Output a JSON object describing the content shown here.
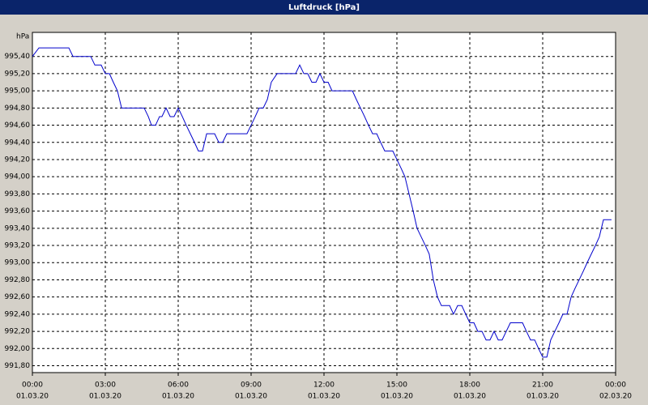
{
  "chart_data": {
    "type": "line",
    "title": "Luftdruck [hPa]",
    "y_label": "hPa",
    "xlim": [
      0,
      24
    ],
    "xticks": [
      {
        "value": 0,
        "label": "00:00",
        "sublabel": "01.03.20"
      },
      {
        "value": 3,
        "label": "03:00",
        "sublabel": "01.03.20"
      },
      {
        "value": 6,
        "label": "06:00",
        "sublabel": "01.03.20"
      },
      {
        "value": 9,
        "label": "09:00",
        "sublabel": "01.03.20"
      },
      {
        "value": 12,
        "label": "12:00",
        "sublabel": "01.03.20"
      },
      {
        "value": 15,
        "label": "15:00",
        "sublabel": "01.03.20"
      },
      {
        "value": 18,
        "label": "18:00",
        "sublabel": "01.03.20"
      },
      {
        "value": 21,
        "label": "21:00",
        "sublabel": "01.03.20"
      },
      {
        "value": 24,
        "label": "00:00",
        "sublabel": "02.03.20"
      }
    ],
    "ylim": [
      991.72,
      995.68
    ],
    "yticks": [
      {
        "value": 991.8,
        "label": "991,80"
      },
      {
        "value": 992.0,
        "label": "992,00"
      },
      {
        "value": 992.2,
        "label": "992,20"
      },
      {
        "value": 992.4,
        "label": "992,40"
      },
      {
        "value": 992.6,
        "label": "992,60"
      },
      {
        "value": 992.8,
        "label": "992,80"
      },
      {
        "value": 993.0,
        "label": "993,00"
      },
      {
        "value": 993.2,
        "label": "993,20"
      },
      {
        "value": 993.4,
        "label": "993,40"
      },
      {
        "value": 993.6,
        "label": "993,60"
      },
      {
        "value": 993.8,
        "label": "993,80"
      },
      {
        "value": 994.0,
        "label": "994,00"
      },
      {
        "value": 994.2,
        "label": "994,20"
      },
      {
        "value": 994.4,
        "label": "994,40"
      },
      {
        "value": 994.6,
        "label": "994,60"
      },
      {
        "value": 994.8,
        "label": "994,80"
      },
      {
        "value": 995.0,
        "label": "995,00"
      },
      {
        "value": 995.2,
        "label": "995,20"
      },
      {
        "value": 995.4,
        "label": "995,40"
      }
    ],
    "grid": true,
    "x": [
      0,
      0.27,
      1.5,
      1.67,
      2.4,
      2.57,
      2.83,
      3,
      3.17,
      3.33,
      3.5,
      3.67,
      4.6,
      4.77,
      4.9,
      5.07,
      5.23,
      5.33,
      5.5,
      5.67,
      5.83,
      6,
      6.17,
      6.33,
      6.5,
      6.67,
      6.83,
      7,
      7.17,
      7.5,
      7.67,
      7.83,
      8,
      8.83,
      9,
      9.17,
      9.33,
      9.5,
      9.67,
      9.83,
      10.07,
      10.83,
      11,
      11.17,
      11.33,
      11.5,
      11.67,
      11.83,
      12,
      12.17,
      12.33,
      13.17,
      13.33,
      13.5,
      13.67,
      13.83,
      14,
      14.17,
      14.33,
      14.5,
      14.83,
      15,
      15.17,
      15.33,
      15.5,
      15.67,
      15.83,
      16,
      16.17,
      16.33,
      16.5,
      16.67,
      16.83,
      17.17,
      17.33,
      17.5,
      17.67,
      17.83,
      18,
      18.17,
      18.33,
      18.5,
      18.67,
      18.83,
      19,
      19.17,
      19.33,
      19.5,
      19.67,
      20.17,
      20.33,
      20.5,
      20.67,
      20.83,
      21,
      21.17,
      21.33,
      21.5,
      21.67,
      21.83,
      22,
      22.17,
      22.33,
      22.5,
      22.67,
      22.83,
      23,
      23.17,
      23.33,
      23.5,
      23.83
    ],
    "series": [
      {
        "name": "Luftdruck",
        "color": "#0000cc",
        "values": [
          995.4,
          995.5,
          995.5,
          995.4,
          995.4,
          995.3,
          995.3,
          995.2,
          995.2,
          995.1,
          995.0,
          994.8,
          994.8,
          994.7,
          994.6,
          994.6,
          994.7,
          994.7,
          994.8,
          994.7,
          994.7,
          994.8,
          994.7,
          994.6,
          994.5,
          994.4,
          994.3,
          994.3,
          994.5,
          994.5,
          994.4,
          994.4,
          994.5,
          994.5,
          994.6,
          994.7,
          994.8,
          994.8,
          994.9,
          995.1,
          995.2,
          995.2,
          995.3,
          995.2,
          995.2,
          995.1,
          995.1,
          995.2,
          995.1,
          995.1,
          995.0,
          995.0,
          994.9,
          994.8,
          994.7,
          994.6,
          994.5,
          994.5,
          994.4,
          994.3,
          994.3,
          994.2,
          994.1,
          994.0,
          993.8,
          993.6,
          993.4,
          993.3,
          993.2,
          993.1,
          992.8,
          992.6,
          992.5,
          992.5,
          992.4,
          992.5,
          992.5,
          992.4,
          992.3,
          992.3,
          992.2,
          992.2,
          992.1,
          992.1,
          992.2,
          992.1,
          992.1,
          992.2,
          992.3,
          992.3,
          992.2,
          992.1,
          992.1,
          992.0,
          991.9,
          991.9,
          992.1,
          992.2,
          992.3,
          992.4,
          992.4,
          992.6,
          992.7,
          992.8,
          992.9,
          993.0,
          993.1,
          993.2,
          993.3,
          993.5,
          993.5
        ]
      }
    ]
  }
}
